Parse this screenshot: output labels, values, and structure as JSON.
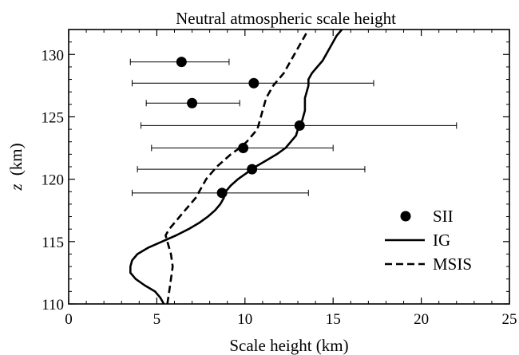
{
  "chart_data": {
    "type": "scatter",
    "title": "Neutral atmospheric scale height",
    "xlabel": "Scale height (km)",
    "ylabel_symbol": "z",
    "ylabel_unit": "(km)",
    "xlim": [
      0,
      25
    ],
    "ylim": [
      110,
      132
    ],
    "xticks": [
      0,
      5,
      10,
      15,
      20,
      25
    ],
    "yticks": [
      110,
      115,
      120,
      125,
      130
    ],
    "legend_position": "bottom-right",
    "series": [
      {
        "name": "SII",
        "kind": "points-with-x-errorbars",
        "color": "#000000",
        "points": [
          {
            "x": 6.4,
            "y": 129.4,
            "xmin": 3.5,
            "xmax": 9.1
          },
          {
            "x": 10.5,
            "y": 127.7,
            "xmin": 3.6,
            "xmax": 17.3
          },
          {
            "x": 7.0,
            "y": 126.1,
            "xmin": 4.4,
            "xmax": 9.7
          },
          {
            "x": 13.1,
            "y": 124.3,
            "xmin": 4.1,
            "xmax": 22.0
          },
          {
            "x": 9.9,
            "y": 122.5,
            "xmin": 4.7,
            "xmax": 15.0
          },
          {
            "x": 10.4,
            "y": 120.8,
            "xmin": 3.9,
            "xmax": 16.8
          },
          {
            "x": 8.7,
            "y": 118.9,
            "xmin": 3.6,
            "xmax": 13.6
          }
        ]
      },
      {
        "name": "IG",
        "kind": "line-solid",
        "color": "#000000",
        "points": [
          [
            5.4,
            110
          ],
          [
            5.2,
            110.5
          ],
          [
            4.9,
            111
          ],
          [
            4.3,
            111.5
          ],
          [
            3.8,
            112
          ],
          [
            3.5,
            112.5
          ],
          [
            3.5,
            113
          ],
          [
            3.6,
            113.5
          ],
          [
            3.9,
            114
          ],
          [
            4.5,
            114.5
          ],
          [
            5.3,
            115
          ],
          [
            6.1,
            115.5
          ],
          [
            6.8,
            116
          ],
          [
            7.4,
            116.5
          ],
          [
            7.9,
            117
          ],
          [
            8.3,
            117.5
          ],
          [
            8.6,
            118
          ],
          [
            8.8,
            118.5
          ],
          [
            8.9,
            119
          ],
          [
            9.2,
            119.5
          ],
          [
            9.6,
            120
          ],
          [
            10.1,
            120.5
          ],
          [
            10.6,
            121
          ],
          [
            11.2,
            121.5
          ],
          [
            11.8,
            122
          ],
          [
            12.3,
            122.5
          ],
          [
            12.6,
            123
          ],
          [
            12.9,
            123.5
          ],
          [
            13.0,
            124
          ],
          [
            13.2,
            124.5
          ],
          [
            13.3,
            125
          ],
          [
            13.4,
            125.5
          ],
          [
            13.4,
            126
          ],
          [
            13.4,
            126.5
          ],
          [
            13.5,
            127
          ],
          [
            13.6,
            127.5
          ],
          [
            13.6,
            128
          ],
          [
            13.8,
            128.5
          ],
          [
            14.1,
            129
          ],
          [
            14.4,
            129.5
          ],
          [
            14.6,
            130
          ],
          [
            14.8,
            130.5
          ],
          [
            15.0,
            131
          ],
          [
            15.2,
            131.5
          ],
          [
            15.5,
            132
          ]
        ]
      },
      {
        "name": "MSIS",
        "kind": "line-dashed",
        "color": "#000000",
        "points": [
          [
            5.6,
            110
          ],
          [
            5.7,
            111
          ],
          [
            5.8,
            112
          ],
          [
            5.9,
            113
          ],
          [
            5.8,
            114
          ],
          [
            5.6,
            115
          ],
          [
            5.5,
            115.5
          ],
          [
            5.7,
            116
          ],
          [
            6.0,
            116.5
          ],
          [
            6.3,
            117
          ],
          [
            6.6,
            117.5
          ],
          [
            6.9,
            118
          ],
          [
            7.2,
            118.5
          ],
          [
            7.4,
            119
          ],
          [
            7.6,
            119.5
          ],
          [
            7.8,
            120
          ],
          [
            8.1,
            120.5
          ],
          [
            8.4,
            121
          ],
          [
            8.8,
            121.5
          ],
          [
            9.2,
            122
          ],
          [
            9.7,
            122.5
          ],
          [
            10.1,
            123
          ],
          [
            10.4,
            123.5
          ],
          [
            10.7,
            124
          ],
          [
            10.8,
            124.5
          ],
          [
            10.9,
            125
          ],
          [
            11.0,
            125.5
          ],
          [
            11.1,
            126
          ],
          [
            11.2,
            126.5
          ],
          [
            11.4,
            127
          ],
          [
            11.6,
            127.5
          ],
          [
            11.9,
            128
          ],
          [
            12.2,
            128.5
          ],
          [
            12.4,
            129
          ],
          [
            12.6,
            129.5
          ],
          [
            12.8,
            130
          ],
          [
            13.0,
            130.5
          ],
          [
            13.2,
            131
          ],
          [
            13.4,
            131.5
          ],
          [
            13.6,
            132
          ]
        ]
      }
    ]
  }
}
